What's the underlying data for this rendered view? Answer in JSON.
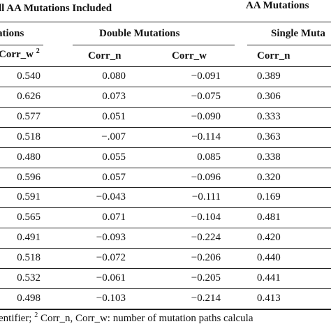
{
  "group_headers": {
    "left": "ll AA Mutations Included",
    "right": "AA Mutations"
  },
  "subheaders": {
    "first": "ations",
    "double": "Double Mutations",
    "single": "Single Muta"
  },
  "columns": {
    "c1": "Corr_w",
    "c1_sup": "2",
    "c2": "Corr_n",
    "c3": "Corr_w",
    "c4": "Corr_n"
  },
  "rows": [
    [
      "0.540",
      "0.080",
      "−0.091",
      "0.389"
    ],
    [
      "0.626",
      "0.073",
      "−0.075",
      "0.306"
    ],
    [
      "0.577",
      "0.051",
      "−0.090",
      "0.333"
    ],
    [
      "0.518",
      "−.007",
      "−0.114",
      "0.363"
    ],
    [
      "0.480",
      "0.055",
      "0.085",
      "0.338"
    ],
    [
      "0.596",
      "0.057",
      "−0.096",
      "0.320"
    ],
    [
      "0.591",
      "−0.043",
      "−0.111",
      "0.169"
    ],
    [
      "0.565",
      "0.071",
      "−0.104",
      "0.481"
    ],
    [
      "0.491",
      "−0.093",
      "−0.224",
      "0.420"
    ],
    [
      "0.518",
      "−0.072",
      "−0.206",
      "0.440"
    ],
    [
      "0.532",
      "−0.061",
      "−0.205",
      "0.441"
    ],
    [
      "0.498",
      "−0.103",
      "−0.214",
      "0.413"
    ]
  ],
  "footnote": {
    "pre": "entifier; ",
    "sup": "2",
    "post": " Corr_n, Corr_w:  number of mutation paths calcula"
  }
}
